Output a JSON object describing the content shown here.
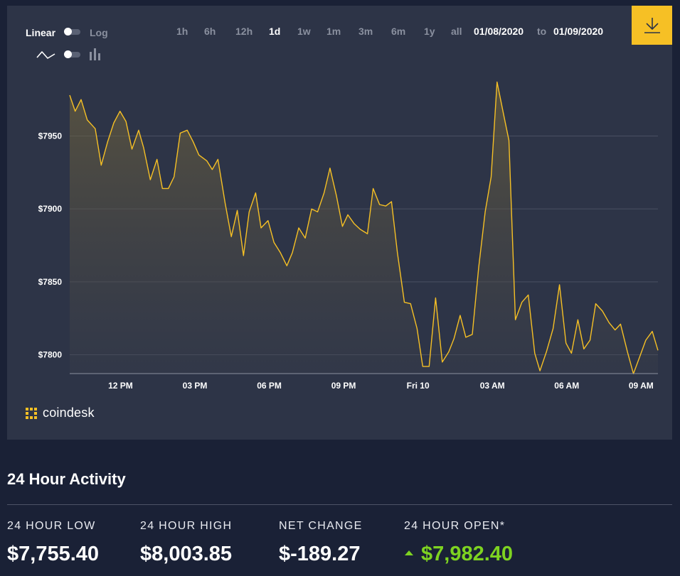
{
  "controls": {
    "scale_linear": "Linear",
    "scale_log": "Log",
    "range_buttons": [
      "1h",
      "6h",
      "12h",
      "1d",
      "1w",
      "1m",
      "3m",
      "6m",
      "1y",
      "all"
    ],
    "active_range": "1d",
    "date_from": "01/08/2020",
    "date_to_label": "to",
    "date_to": "01/09/2020"
  },
  "brand": {
    "logo_text": "coindesk",
    "accent": "#f6c025"
  },
  "chart_data": {
    "type": "area",
    "line_color": "#f6c025",
    "grid": true,
    "y_ticks": [
      {
        "value": 7950,
        "label": "$7950"
      },
      {
        "value": 7900,
        "label": "$7900"
      },
      {
        "value": 7850,
        "label": "$7850"
      },
      {
        "value": 7800,
        "label": "$7800"
      }
    ],
    "x_ticks": [
      {
        "hours": 2,
        "label": "12 PM"
      },
      {
        "hours": 5,
        "label": "03 PM"
      },
      {
        "hours": 8,
        "label": "06 PM"
      },
      {
        "hours": 11,
        "label": "09 PM"
      },
      {
        "hours": 14,
        "label": "Fri 10"
      },
      {
        "hours": 17,
        "label": "03 AM"
      },
      {
        "hours": 20,
        "label": "06 AM"
      },
      {
        "hours": 23,
        "label": "09 AM"
      }
    ],
    "ylim": [
      7787,
      7987
    ],
    "xlim": [
      -0.05,
      23.68
    ],
    "series": [
      {
        "x": [
          -0.05,
          0.17,
          0.41,
          0.66,
          0.98,
          1.22,
          1.48,
          1.73,
          1.98,
          2.22,
          2.46,
          2.73,
          2.93,
          3.2,
          3.47,
          3.69,
          3.93,
          4.16,
          4.41,
          4.69,
          4.93,
          5.16,
          5.48,
          5.7,
          5.93,
          6.22,
          6.47,
          6.71,
          6.96,
          7.19,
          7.45,
          7.67,
          7.95,
          8.19,
          8.45,
          8.71,
          8.93,
          9.19,
          9.45,
          9.71,
          9.95,
          10.21,
          10.45,
          10.71,
          10.95,
          11.17,
          11.42,
          11.67,
          11.96,
          12.19,
          12.45,
          12.7,
          12.93,
          13.17,
          13.45,
          13.7,
          13.96,
          14.19,
          14.45,
          14.71,
          14.98,
          15.24,
          15.45,
          15.7,
          15.93,
          16.19,
          16.45,
          16.71,
          16.95,
          17.19,
          17.45,
          17.67,
          17.93,
          18.19,
          18.45,
          18.71,
          18.92,
          19.18,
          19.45,
          19.71,
          19.97,
          20.19,
          20.45,
          20.69,
          20.94,
          21.17,
          21.44,
          21.71,
          21.95,
          22.17,
          22.45,
          22.69,
          22.93,
          23.19,
          23.45,
          23.68
        ],
        "y": [
          7978,
          7967,
          7975,
          7961,
          7955,
          7930,
          7946,
          7959,
          7967,
          7960,
          7941,
          7954,
          7942,
          7920,
          7934,
          7914,
          7914,
          7922,
          7952,
          7954,
          7946,
          7937,
          7933,
          7927,
          7934,
          7904,
          7881,
          7899,
          7868,
          7898,
          7911,
          7887,
          7892,
          7877,
          7870,
          7861,
          7870,
          7887,
          7880,
          7900,
          7898,
          7911,
          7928,
          7909,
          7888,
          7896,
          7890,
          7886,
          7883,
          7914,
          7903,
          7902,
          7905,
          7870,
          7836,
          7835,
          7818,
          7792,
          7792,
          7839,
          7795,
          7802,
          7811,
          7827,
          7812,
          7814,
          7860,
          7898,
          7922,
          7987,
          7965,
          7947,
          7824,
          7836,
          7841,
          7801,
          7789,
          7802,
          7818,
          7848,
          7808,
          7801,
          7824,
          7804,
          7810,
          7835,
          7830,
          7822,
          7817,
          7821,
          7802,
          7787,
          7798,
          7810,
          7816,
          7803
        ]
      }
    ]
  },
  "activity": {
    "title": "24 Hour Activity",
    "low_label": "24 HOUR LOW",
    "low_value": "$7,755.40",
    "high_label": "24 HOUR HIGH",
    "high_value": "$8,003.85",
    "change_label": "NET CHANGE",
    "change_value": "$-189.27",
    "open_label": "24 HOUR OPEN*",
    "open_value": "$7,982.40",
    "open_color": "#7ed321"
  }
}
